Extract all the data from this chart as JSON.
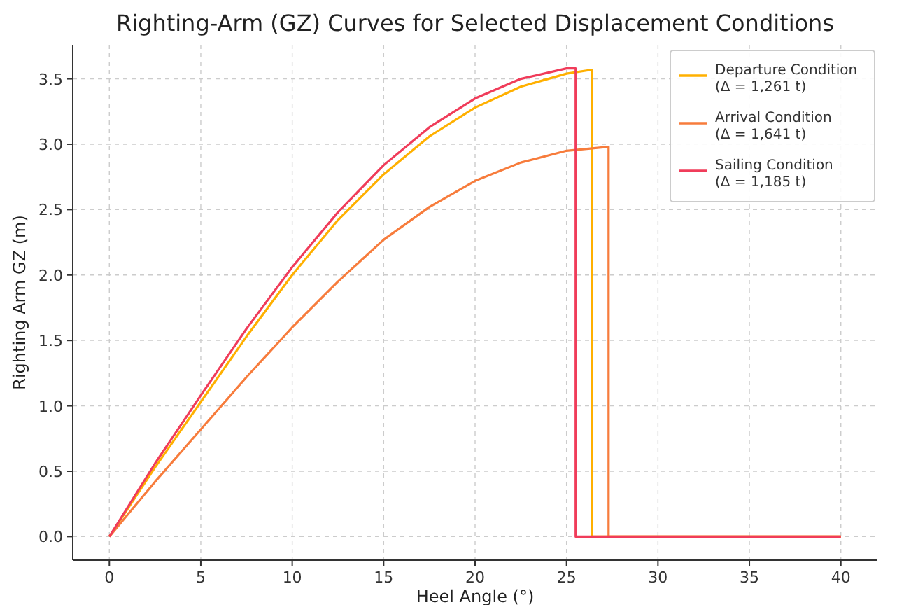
{
  "chart_data": {
    "type": "line",
    "title": "Righting-Arm (GZ) Curves for Selected Displacement Conditions",
    "xlabel": "Heel Angle (°)",
    "ylabel": "Righting Arm GZ (m)",
    "xlim": [
      -2,
      42
    ],
    "ylim": [
      -0.18,
      3.76
    ],
    "xticks": [
      0,
      5,
      10,
      15,
      20,
      25,
      30,
      35,
      40
    ],
    "yticks": [
      {
        "value": 0,
        "label": "0.0"
      },
      {
        "value": 0.5,
        "label": "0.5"
      },
      {
        "value": 1,
        "label": "1.0"
      },
      {
        "value": 1.5,
        "label": "1.5"
      },
      {
        "value": 2,
        "label": "2.0"
      },
      {
        "value": 2.5,
        "label": "2.5"
      },
      {
        "value": 3,
        "label": "3.0"
      },
      {
        "value": 3.5,
        "label": "3.5"
      }
    ],
    "grid": true,
    "legend": "top right",
    "line_style": "solid",
    "marker": "none",
    "series": [
      {
        "name": "Departure Condition\n(Δ = 1,261 t)",
        "color": "#ffb000",
        "x": [
          0,
          2.5,
          5,
          7.5,
          10,
          12.5,
          15,
          17.5,
          20,
          22.5,
          25,
          26.4,
          26.4,
          40
        ],
        "values": [
          0,
          0.53,
          1.03,
          1.53,
          2.0,
          2.42,
          2.77,
          3.06,
          3.28,
          3.44,
          3.54,
          3.57,
          0,
          0
        ]
      },
      {
        "name": "Arrival Condition\n(Δ = 1,641 t)",
        "color": "#f77c3c",
        "x": [
          0,
          2.5,
          5,
          7.5,
          10,
          12.5,
          15,
          17.5,
          20,
          22.5,
          25,
          27.3,
          27.3,
          40
        ],
        "values": [
          0,
          0.42,
          0.82,
          1.22,
          1.6,
          1.95,
          2.27,
          2.52,
          2.72,
          2.86,
          2.95,
          2.98,
          0,
          0
        ]
      },
      {
        "name": "Sailing Condition\n(Δ = 1,185 t)",
        "color": "#f03c5a",
        "x": [
          0,
          2.5,
          5,
          7.5,
          10,
          12.5,
          15,
          17.5,
          20,
          22.5,
          25,
          25.5,
          25.5,
          40
        ],
        "values": [
          0,
          0.56,
          1.08,
          1.59,
          2.06,
          2.48,
          2.84,
          3.13,
          3.35,
          3.5,
          3.58,
          3.58,
          0,
          0
        ]
      }
    ]
  }
}
